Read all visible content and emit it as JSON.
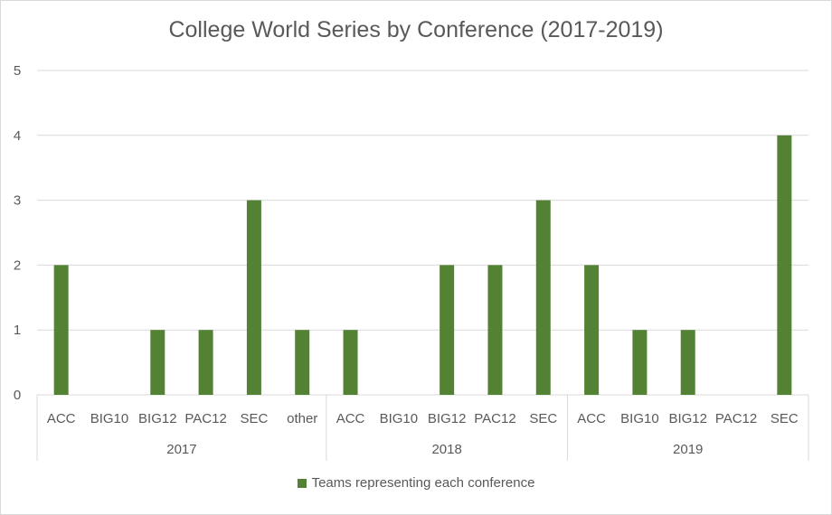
{
  "chart_data": {
    "type": "bar",
    "title": "College World Series by Conference (2017-2019)",
    "ylim": [
      0,
      5
    ],
    "yticks": [
      0,
      1,
      2,
      3,
      4,
      5
    ],
    "grid": true,
    "legend_position": "bottom",
    "groups": [
      {
        "label": "2017",
        "categories": [
          "ACC",
          "BIG10",
          "BIG12",
          "PAC12",
          "SEC",
          "other"
        ],
        "values": [
          2,
          0,
          1,
          1,
          3,
          1
        ]
      },
      {
        "label": "2018",
        "categories": [
          "ACC",
          "BIG10",
          "BIG12",
          "PAC12",
          "SEC"
        ],
        "values": [
          1,
          0,
          2,
          2,
          3
        ]
      },
      {
        "label": "2019",
        "categories": [
          "ACC",
          "BIG10",
          "BIG12",
          "PAC12",
          "SEC"
        ],
        "values": [
          2,
          1,
          1,
          0,
          4
        ]
      }
    ],
    "series": [
      {
        "name": "Teams representing each conference",
        "color": "#548235"
      }
    ]
  }
}
